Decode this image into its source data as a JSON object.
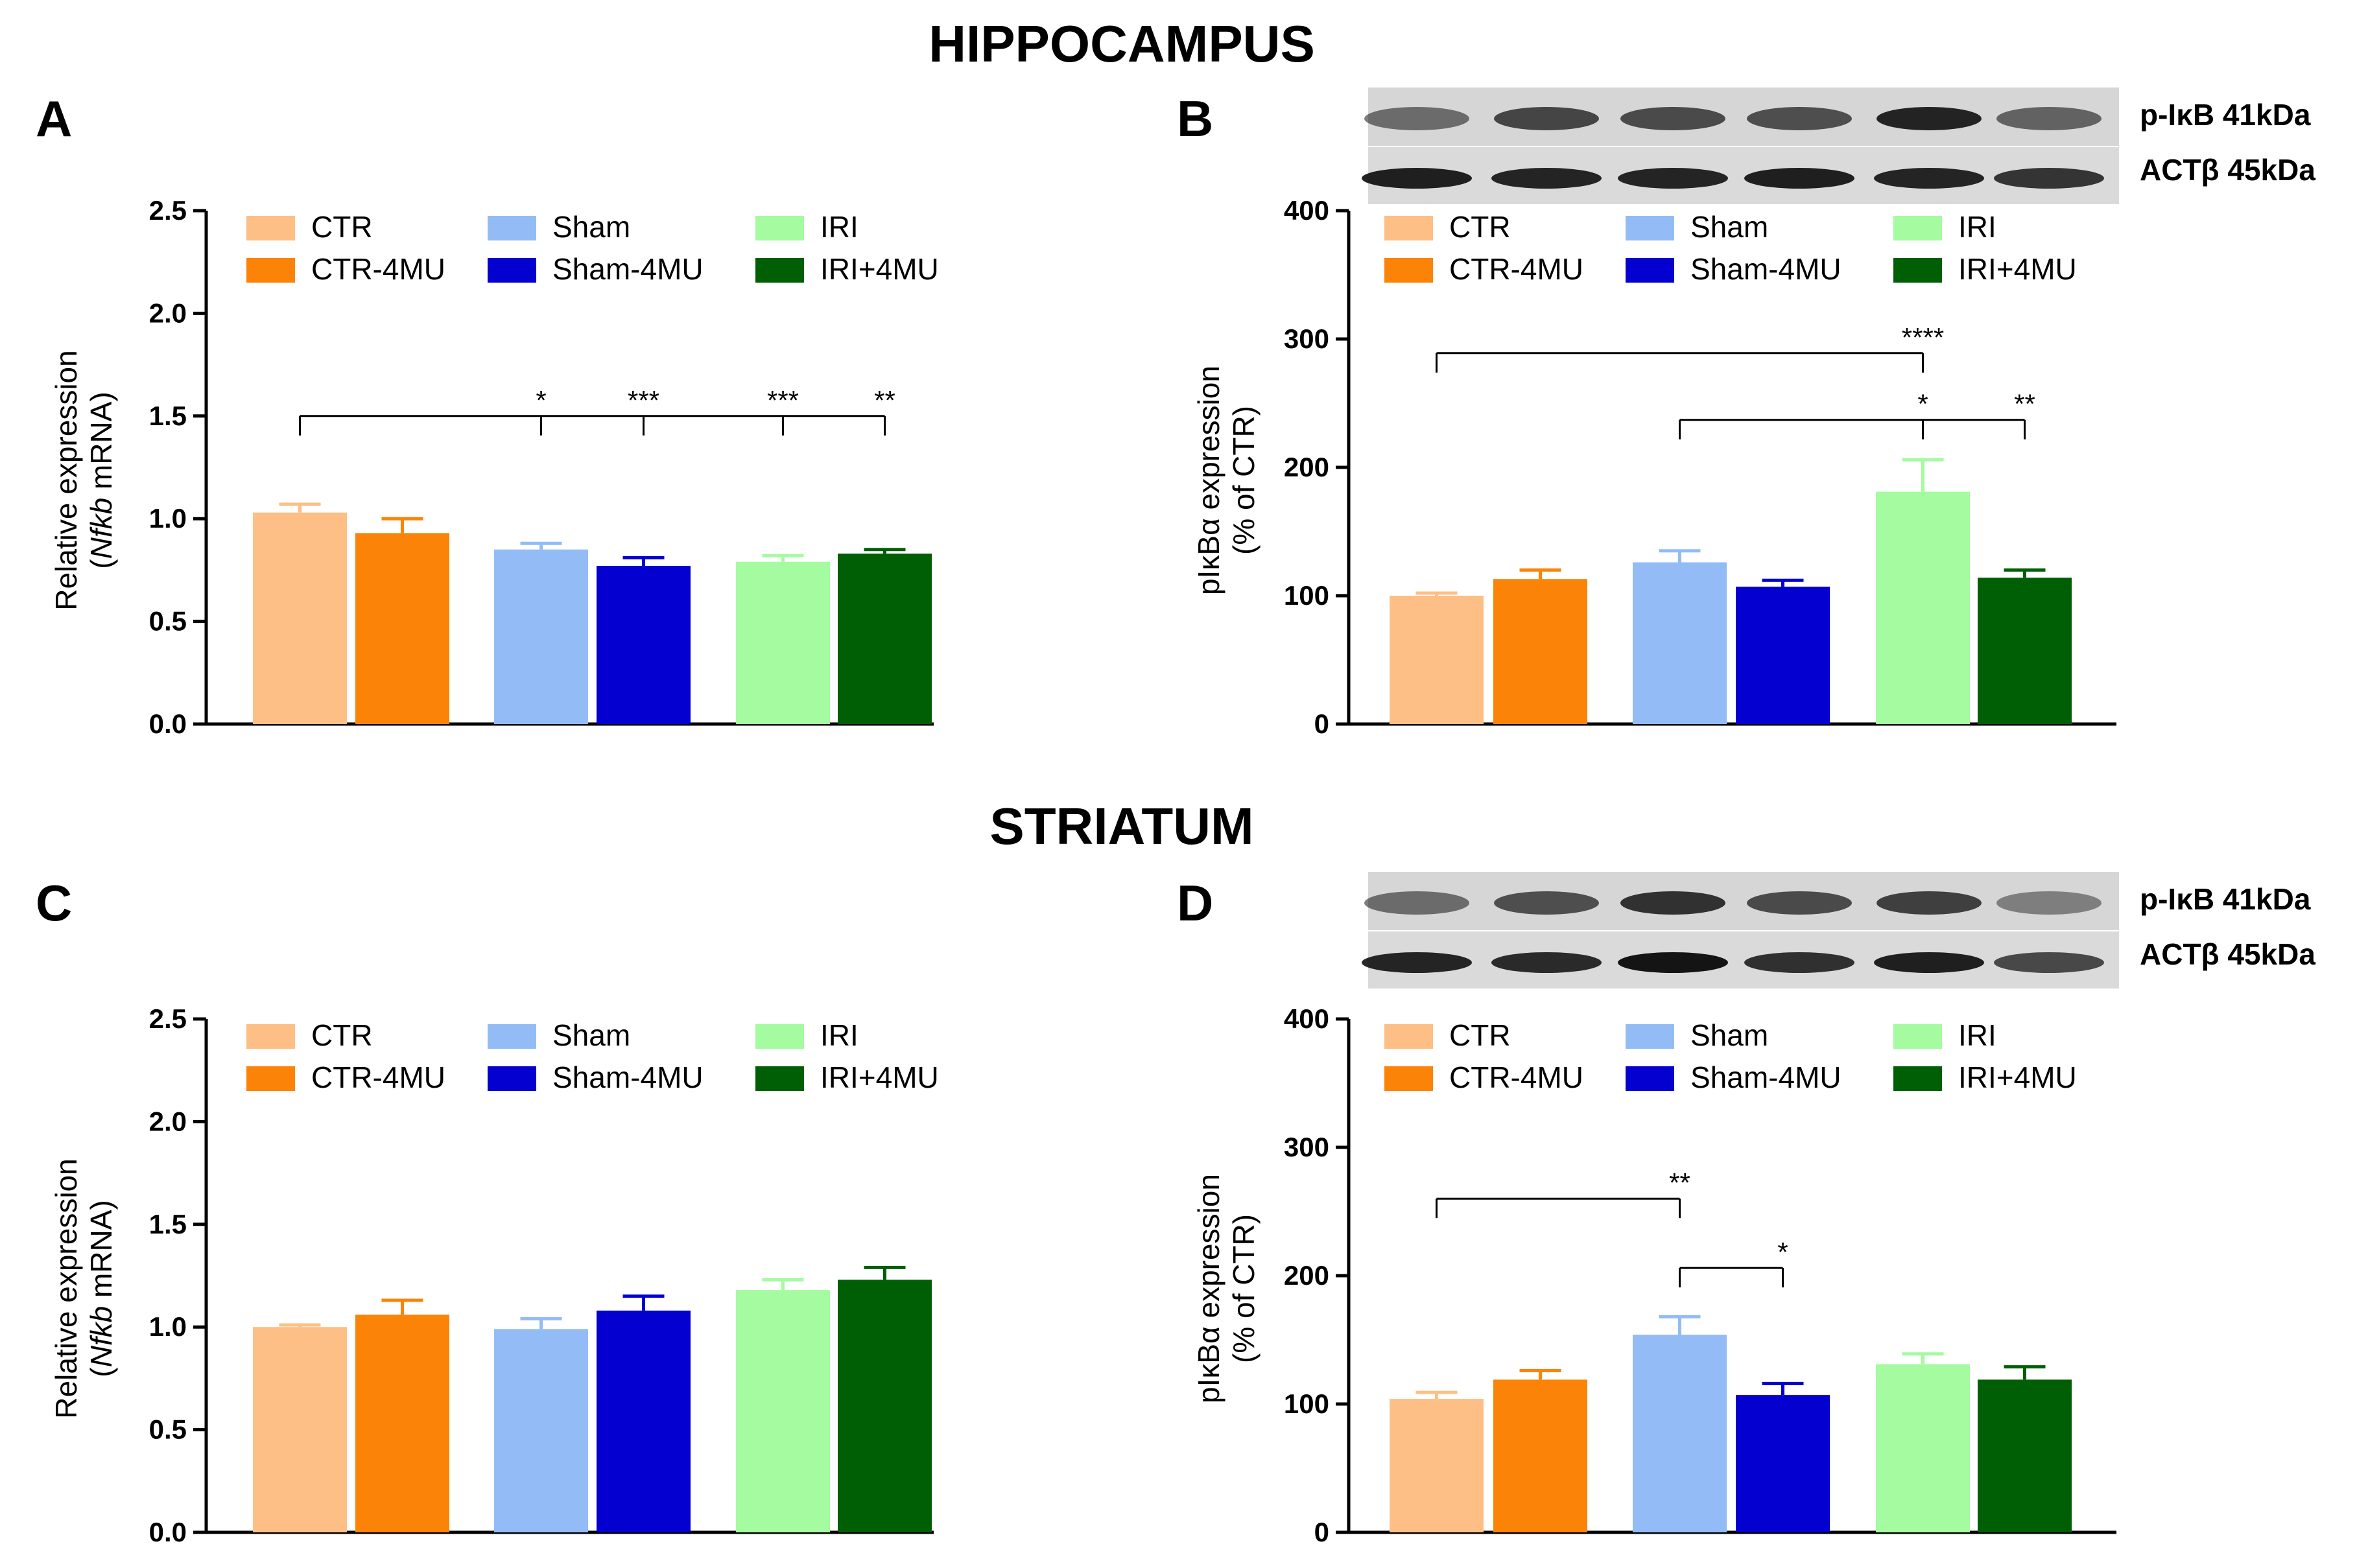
{
  "section_titles": {
    "top": "HIPPOCAMPUS",
    "bottom": "STRIATUM"
  },
  "legend": {
    "items": [
      {
        "label": "CTR",
        "color": "#FDBF85"
      },
      {
        "label": "CTR-4MU",
        "color": "#FB8408"
      },
      {
        "label": "Sham",
        "color": "#93BCF7"
      },
      {
        "label": "Sham-4MU",
        "color": "#0300D0"
      },
      {
        "label": "IRI",
        "color": "#A4FBA0"
      },
      {
        "label": "IRI+4MU",
        "color": "#005F05"
      }
    ]
  },
  "blots": {
    "band1": "p-IκB 41kDa",
    "band2": "ACTβ 45kDa"
  },
  "chart_data": [
    {
      "panel": "A",
      "type": "bar",
      "categories": [
        "CTR",
        "CTR-4MU",
        "Sham",
        "Sham-4MU",
        "IRI",
        "IRI+4MU"
      ],
      "values": [
        1.03,
        0.93,
        0.85,
        0.77,
        0.79,
        0.83
      ],
      "errors": [
        0.04,
        0.07,
        0.03,
        0.04,
        0.03,
        0.02
      ],
      "ylabel_line1": "Relative expression",
      "ylabel_line2_pre": "(",
      "ylabel_line2_italic": "Nfkb",
      "ylabel_line2_post": " mRNA)",
      "ylim": [
        0,
        2.5
      ],
      "ticks": [
        "0.0",
        "0.5",
        "1.0",
        "1.5",
        "2.0",
        "2.5"
      ],
      "tick_values": [
        0,
        0.5,
        1.0,
        1.5,
        2.0,
        2.5
      ],
      "significance": [
        {
          "from": 0,
          "to": [
            2,
            3,
            4,
            5
          ],
          "level": 1.5,
          "labels": [
            "*",
            "***",
            "***",
            "**"
          ]
        }
      ]
    },
    {
      "panel": "B",
      "type": "bar",
      "categories": [
        "CTR",
        "CTR-4MU",
        "Sham",
        "Sham-4MU",
        "IRI",
        "IRI+4MU"
      ],
      "values": [
        100,
        113,
        126,
        107,
        181,
        114
      ],
      "errors": [
        2,
        7,
        9,
        5,
        25,
        6
      ],
      "ylabel_line1": "pIκBα expression",
      "ylabel_line2": "(% of CTR)",
      "ylim": [
        0,
        400
      ],
      "ticks": [
        "0",
        "100",
        "200",
        "300",
        "400"
      ],
      "tick_values": [
        0,
        100,
        200,
        300,
        400
      ],
      "significance": [
        {
          "from": 0,
          "to": [
            4
          ],
          "level": 289,
          "labels": [
            "****"
          ]
        },
        {
          "from": 2,
          "to": [
            4,
            5
          ],
          "level": 237,
          "labels": [
            "*",
            "**"
          ]
        }
      ]
    },
    {
      "panel": "C",
      "type": "bar",
      "categories": [
        "CTR",
        "CTR-4MU",
        "Sham",
        "Sham-4MU",
        "IRI",
        "IRI+4MU"
      ],
      "values": [
        1.0,
        1.06,
        0.99,
        1.08,
        1.18,
        1.23
      ],
      "errors": [
        0.01,
        0.07,
        0.05,
        0.07,
        0.05,
        0.06
      ],
      "ylabel_line1": "Relative expression",
      "ylabel_line2_pre": "(",
      "ylabel_line2_italic": "Nfkb",
      "ylabel_line2_post": " mRNA)",
      "ylim": [
        0,
        2.5
      ],
      "ticks": [
        "0.0",
        "0.5",
        "1.0",
        "1.5",
        "2.0",
        "2.5"
      ],
      "tick_values": [
        0,
        0.5,
        1.0,
        1.5,
        2.0,
        2.5
      ],
      "significance": []
    },
    {
      "panel": "D",
      "type": "bar",
      "categories": [
        "CTR",
        "CTR-4MU",
        "Sham",
        "Sham-4MU",
        "IRI",
        "IRI+4MU"
      ],
      "values": [
        104,
        119,
        154,
        107,
        131,
        119
      ],
      "errors": [
        5,
        7,
        14,
        9,
        8,
        10
      ],
      "ylabel_line1": "pIκBα expression",
      "ylabel_line2": "(% of CTR)",
      "ylim": [
        0,
        400
      ],
      "ticks": [
        "0",
        "100",
        "200",
        "300",
        "400"
      ],
      "tick_values": [
        0,
        100,
        200,
        300,
        400
      ],
      "significance": [
        {
          "from": 0,
          "to": [
            2
          ],
          "level": 260,
          "labels": [
            "**"
          ]
        },
        {
          "from": 2,
          "to": [
            3
          ],
          "level": 206,
          "labels": [
            "*"
          ]
        }
      ]
    }
  ]
}
